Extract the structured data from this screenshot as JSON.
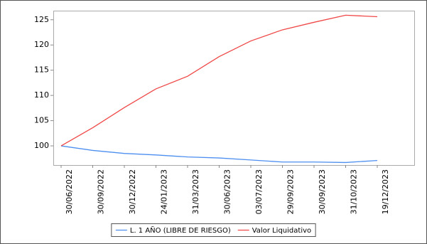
{
  "chart_data": {
    "type": "line",
    "categories": [
      "30/06/2022",
      "30/09/2022",
      "30/12/2022",
      "24/01/2023",
      "31/03/2023",
      "30/06/2023",
      "03/07/2023",
      "29/09/2023",
      "30/09/2023",
      "31/10/2023",
      "19/12/2023"
    ],
    "series": [
      {
        "name": "L. 1 AÑO (LIBRE DE RIESGO)",
        "color": "#4d8ff0",
        "values": [
          100,
          99.1,
          98.5,
          98.2,
          97.8,
          97.6,
          97.2,
          96.8,
          96.8,
          96.7,
          97.1
        ]
      },
      {
        "name": "Valor Liquidativo",
        "color": "#f04848",
        "values": [
          100,
          103.6,
          107.6,
          111.3,
          113.8,
          117.7,
          120.8,
          123,
          124.5,
          125.9,
          125.6
        ]
      }
    ],
    "ylim": [
      96.2,
      126.8
    ],
    "yticks": [
      100,
      105,
      110,
      115,
      120,
      125
    ],
    "grid": false,
    "legend": "bottom"
  }
}
